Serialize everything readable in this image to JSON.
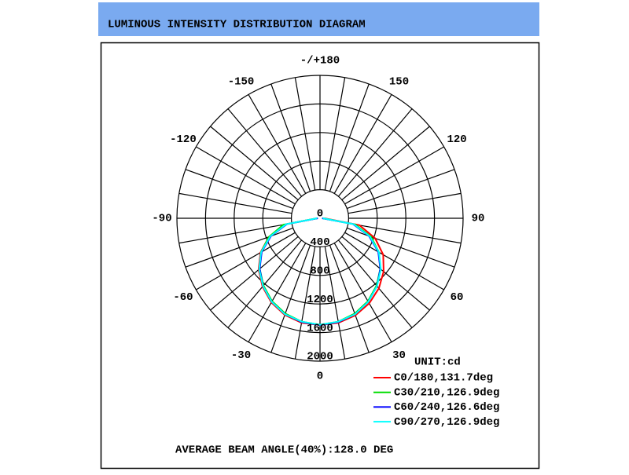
{
  "chart_data": {
    "type": "polar",
    "title": "LUMINOUS INTENSITY DISTRIBUTION DIAGRAM",
    "legend_title": "UNIT:cd",
    "annotation": "AVERAGE BEAM ANGLE(40%):128.0 DEG",
    "x": [
      -90,
      -80,
      -70,
      -60,
      -50,
      -40,
      -30,
      -20,
      -10,
      0,
      10,
      20,
      30,
      40,
      50,
      60,
      70,
      80,
      90
    ],
    "series": [
      {
        "name": "C0/180,131.7deg",
        "color": "#ff0000",
        "values": [
          40,
          480,
          760,
          960,
          1120,
          1250,
          1360,
          1440,
          1485,
          1495,
          1485,
          1445,
          1375,
          1280,
          1160,
          1020,
          820,
          560,
          60
        ]
      },
      {
        "name": "C30/210,126.9deg",
        "color": "#00dd00",
        "values": [
          40,
          520,
          760,
          950,
          1100,
          1230,
          1340,
          1420,
          1470,
          1490,
          1470,
          1420,
          1340,
          1230,
          1100,
          950,
          760,
          500,
          40
        ]
      },
      {
        "name": "C60/240,126.6deg",
        "color": "#0000ff",
        "values": [
          30,
          470,
          730,
          940,
          1100,
          1240,
          1350,
          1430,
          1475,
          1495,
          1475,
          1430,
          1350,
          1240,
          1100,
          940,
          730,
          470,
          30
        ]
      },
      {
        "name": "C90/270,126.9deg",
        "color": "#00ffff",
        "values": [
          40,
          480,
          740,
          950,
          1110,
          1240,
          1350,
          1430,
          1470,
          1490,
          1470,
          1430,
          1350,
          1240,
          1110,
          950,
          740,
          480,
          40
        ]
      }
    ],
    "rlim": [
      0,
      2000
    ],
    "rticks": [
      0,
      400,
      800,
      1200,
      1600,
      2000
    ],
    "thetaticks": [
      0,
      30,
      60,
      90,
      120,
      150,
      {
        "value": 180,
        "label": "-/+180"
      },
      -150,
      -120,
      -90,
      -60,
      -30
    ],
    "theta_grid_step": 10,
    "grid": true
  }
}
